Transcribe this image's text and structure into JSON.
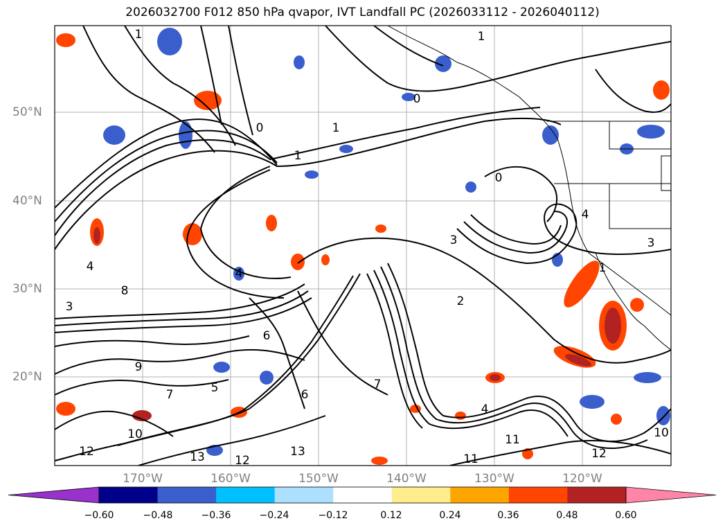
{
  "title": "2026032700 F012 850 hPa qvapor, IVT Landfall PC (2026033112 - 2026040112)",
  "map": {
    "lat_labels": [
      "50°N",
      "40°N",
      "30°N",
      "20°N"
    ],
    "lon_labels": [
      "170°W",
      "160°W",
      "150°W",
      "140°W",
      "130°W",
      "120°W"
    ],
    "contour_labels": [
      "1",
      "0",
      "1",
      "1",
      "0",
      "1",
      "4",
      "3",
      "8",
      "6",
      "9",
      "5",
      "7",
      "6",
      "10",
      "12",
      "13",
      "12",
      "13",
      "4",
      "2",
      "0",
      "7",
      "4",
      "11",
      "11",
      "12",
      "10",
      "3",
      "4",
      "1",
      "3"
    ]
  },
  "colorbar": {
    "colors": [
      "#9932CC",
      "#00008B",
      "#3A5FCD",
      "#00BFFF",
      "#ADDFFF",
      "#FFFFFF",
      "#FFEC8B",
      "#FFA500",
      "#FF4500",
      "#B22222",
      "#FF85A8",
      "#FF85A8"
    ],
    "under_color": "#9932CC",
    "over_color": "#FF85A8",
    "ticks": [
      "−0.60",
      "−0.48",
      "−0.36",
      "−0.24",
      "−0.12",
      "0.12",
      "0.24",
      "0.36",
      "0.48",
      "0.60"
    ]
  }
}
